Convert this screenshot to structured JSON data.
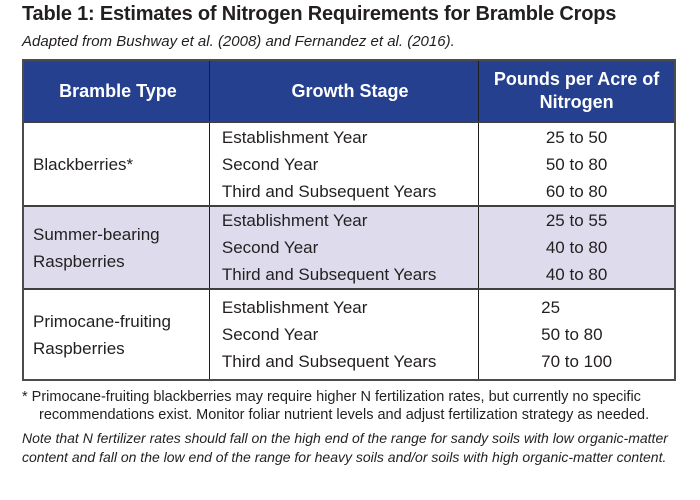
{
  "page": {
    "title": "Table 1: Estimates of Nitrogen Requirements for Bramble Crops",
    "subtitle": "Adapted from Bushway et al. (2008) and Fernandez et al. (2016)."
  },
  "table": {
    "headers": [
      "Bramble Type",
      "Growth Stage",
      "Pounds per Acre of Nitrogen"
    ],
    "rows": [
      {
        "bramble_type": "Blackberries*",
        "stages": [
          "Establishment Year",
          "Second Year",
          "Third and Subsequent Years"
        ],
        "values": [
          "25 to 50",
          "50 to 80",
          "60 to 80"
        ]
      },
      {
        "bramble_type": "Summer-bearing Raspberries",
        "stages": [
          "Establishment Year",
          "Second Year",
          "Third and Subsequent Years"
        ],
        "values": [
          "25 to 55",
          "40 to 80",
          "40 to 80"
        ]
      },
      {
        "bramble_type": "Primocane-fruiting Raspberries",
        "stages": [
          "Establishment Year",
          "Second Year",
          "Third and Subsequent Years"
        ],
        "values": [
          "25",
          "50 to 80",
          "70 to 100"
        ]
      }
    ]
  },
  "footnote": "* Primocane-fruiting blackberries may require higher N fertilization rates, but currently no specific recommendations exist. Monitor foliar nutrient levels and adjust fertilization strategy as needed.",
  "note": "Note that N fertilizer rates should fall on the high end of the range for sandy soils with low organic-matter content and fall on the low end of the range for heavy soils and/or soils with high organic-matter content.",
  "colors": {
    "header_bg": "#25408F",
    "header_text": "#FFFFFF",
    "shaded_row_bg": "#DEDCEC",
    "body_text": "#231F20",
    "outer_border": "#4C4C4E",
    "inner_line": "#1E1E1E",
    "row_line": "#3F3F41"
  }
}
